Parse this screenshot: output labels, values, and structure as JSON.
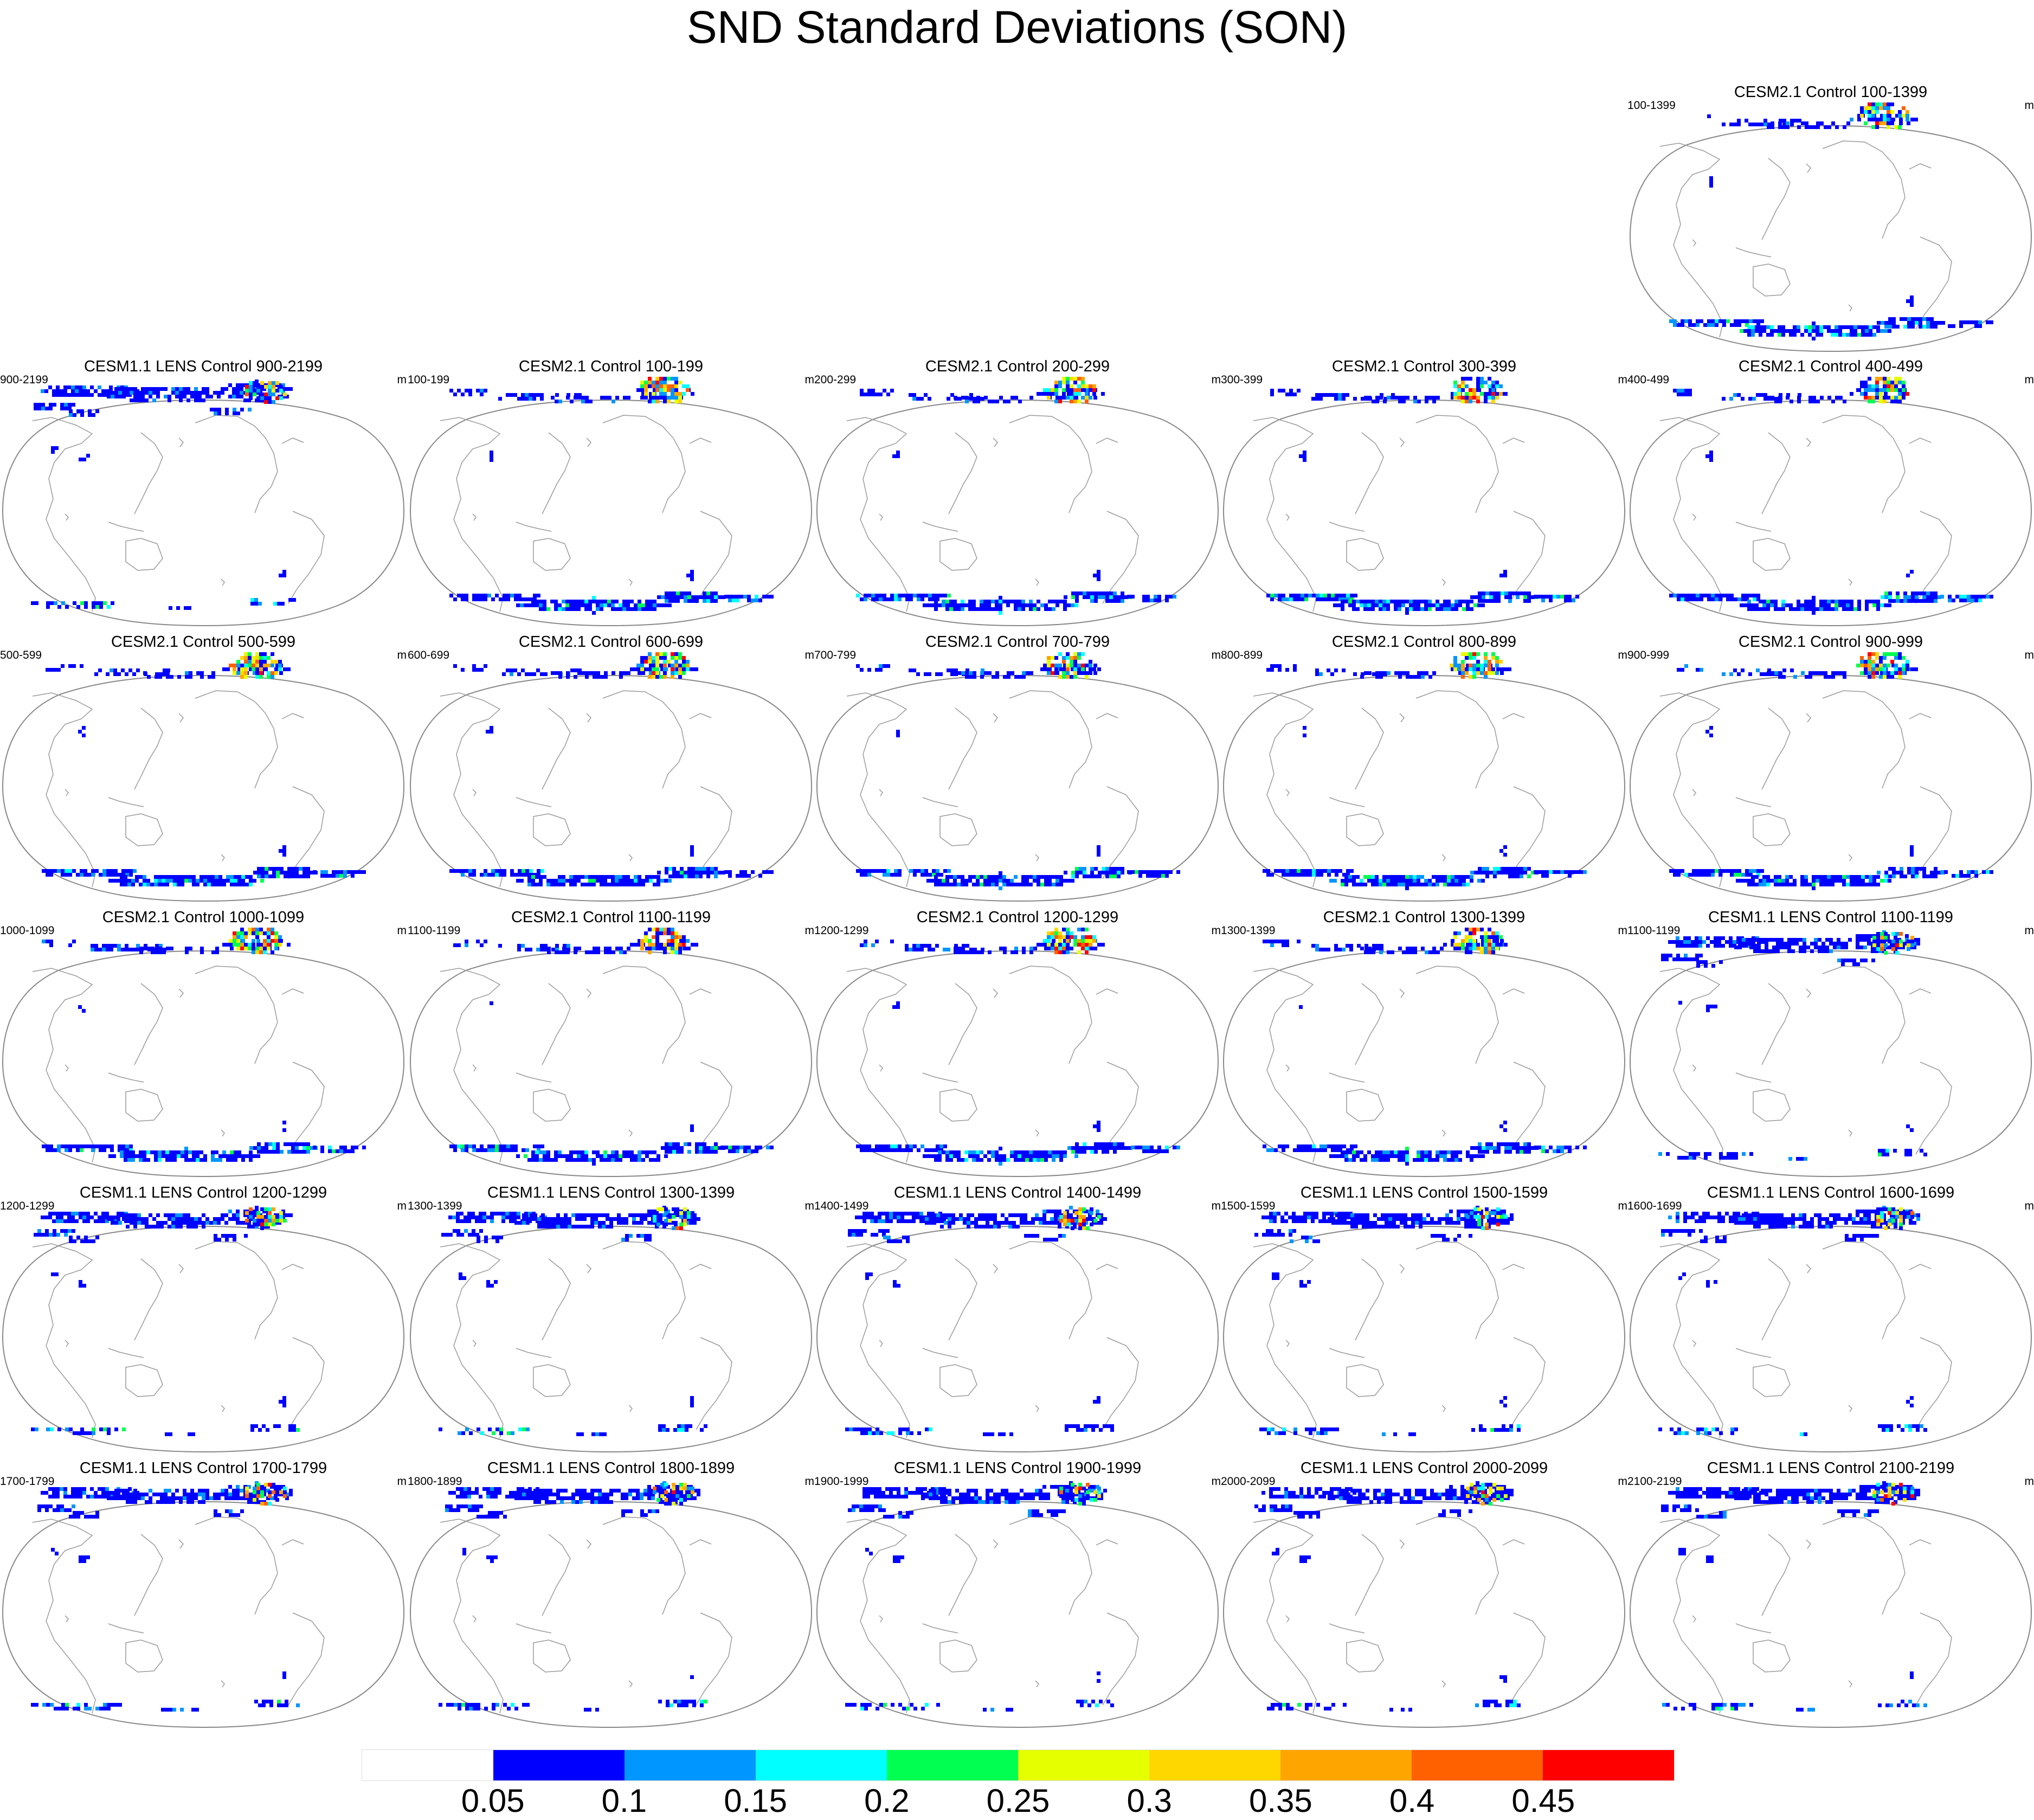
{
  "title": "SND Standard Deviations (SON)",
  "panels": [
    {
      "title": "CESM2.1 Control 100-1399",
      "left_label": "100-1399",
      "right_label": "m",
      "style": "cesm2"
    },
    {
      "title": "CESM1.1 LENS Control 900-2199",
      "left_label": "900-2199",
      "right_label": "m",
      "style": "lens"
    },
    {
      "title": "CESM2.1 Control 100-199",
      "left_label": "100-199",
      "right_label": "m",
      "style": "cesm2"
    },
    {
      "title": "CESM2.1 Control 200-299",
      "left_label": "200-299",
      "right_label": "m",
      "style": "cesm2"
    },
    {
      "title": "CESM2.1 Control 300-399",
      "left_label": "300-399",
      "right_label": "m",
      "style": "cesm2"
    },
    {
      "title": "CESM2.1 Control 400-499",
      "left_label": "400-499",
      "right_label": "m",
      "style": "cesm2"
    },
    {
      "title": "CESM2.1 Control 500-599",
      "left_label": "500-599",
      "right_label": "m",
      "style": "cesm2"
    },
    {
      "title": "CESM2.1 Control 600-699",
      "left_label": "600-699",
      "right_label": "m",
      "style": "cesm2"
    },
    {
      "title": "CESM2.1 Control 700-799",
      "left_label": "700-799",
      "right_label": "m",
      "style": "cesm2"
    },
    {
      "title": "CESM2.1 Control 800-899",
      "left_label": "800-899",
      "right_label": "m",
      "style": "cesm2"
    },
    {
      "title": "CESM2.1 Control 900-999",
      "left_label": "900-999",
      "right_label": "m",
      "style": "cesm2"
    },
    {
      "title": "CESM2.1 Control 1000-1099",
      "left_label": "1000-1099",
      "right_label": "m",
      "style": "cesm2"
    },
    {
      "title": "CESM2.1 Control 1100-1199",
      "left_label": "1100-1199",
      "right_label": "m",
      "style": "cesm2"
    },
    {
      "title": "CESM2.1 Control 1200-1299",
      "left_label": "1200-1299",
      "right_label": "m",
      "style": "cesm2"
    },
    {
      "title": "CESM2.1 Control 1300-1399",
      "left_label": "1300-1399",
      "right_label": "m",
      "style": "cesm2"
    },
    {
      "title": "CESM1.1 LENS Control 1100-1199",
      "left_label": "1100-1199",
      "right_label": "m",
      "style": "lens"
    },
    {
      "title": "CESM1.1 LENS Control 1200-1299",
      "left_label": "1200-1299",
      "right_label": "m",
      "style": "lens"
    },
    {
      "title": "CESM1.1 LENS Control 1300-1399",
      "left_label": "1300-1399",
      "right_label": "m",
      "style": "lens"
    },
    {
      "title": "CESM1.1 LENS Control 1400-1499",
      "left_label": "1400-1499",
      "right_label": "m",
      "style": "lens"
    },
    {
      "title": "CESM1.1 LENS Control 1500-1599",
      "left_label": "1500-1599",
      "right_label": "m",
      "style": "lens"
    },
    {
      "title": "CESM1.1 LENS Control 1600-1699",
      "left_label": "1600-1699",
      "right_label": "m",
      "style": "lens"
    },
    {
      "title": "CESM1.1 LENS Control 1700-1799",
      "left_label": "1700-1799",
      "right_label": "m",
      "style": "lens"
    },
    {
      "title": "CESM1.1 LENS Control 1800-1899",
      "left_label": "1800-1899",
      "right_label": "m",
      "style": "lens"
    },
    {
      "title": "CESM1.1 LENS Control 1900-1999",
      "left_label": "1900-1999",
      "right_label": "m",
      "style": "lens"
    },
    {
      "title": "CESM1.1 LENS Control 2000-2099",
      "left_label": "2000-2099",
      "right_label": "m",
      "style": "lens"
    },
    {
      "title": "CESM1.1 LENS Control 2100-2199",
      "left_label": "2100-2199",
      "right_label": "m",
      "style": "lens"
    }
  ],
  "colorbar": {
    "colors": [
      "#ffffff",
      "#0000ff",
      "#0096ff",
      "#00ffff",
      "#00ff50",
      "#e6ff00",
      "#ffd700",
      "#ffa500",
      "#ff6000",
      "#ff0000"
    ],
    "labels": [
      "0.05",
      "0.1",
      "0.15",
      "0.2",
      "0.25",
      "0.3",
      "0.35",
      "0.4",
      "0.45"
    ]
  }
}
